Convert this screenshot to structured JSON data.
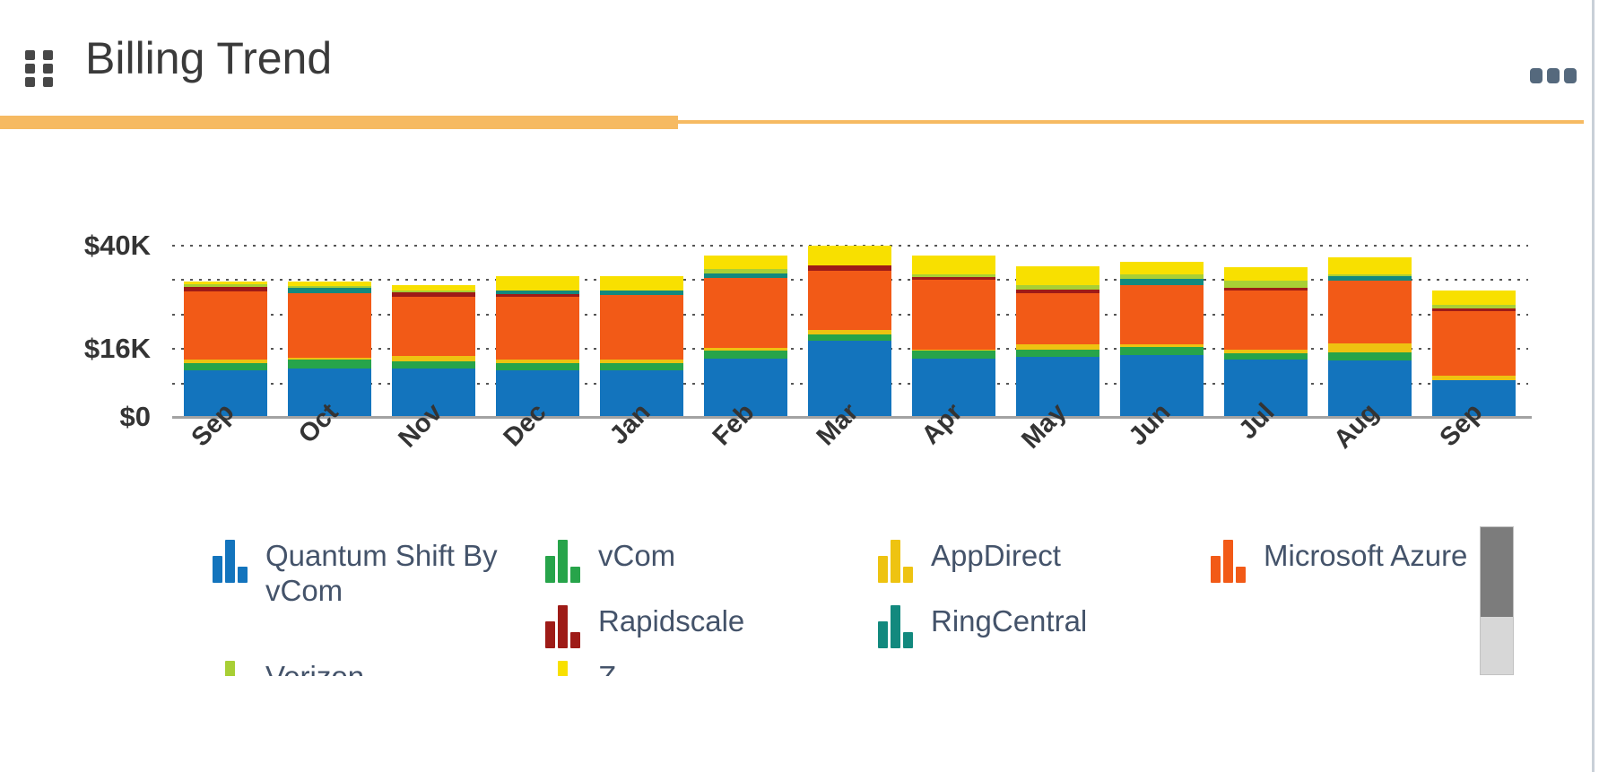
{
  "widget": {
    "title": "Billing Trend",
    "accent_color": "#f6ba62",
    "icons": {
      "drag_handle": "grip-dots",
      "menu": "ellipsis"
    }
  },
  "chart": {
    "y_axis_labels": [
      "$40K",
      "$16K",
      "$0"
    ]
  },
  "chart_data": {
    "type": "bar",
    "stacked": true,
    "title": "Billing Trend",
    "unit": "USD thousands",
    "categories": [
      "Sep",
      "Oct",
      "Nov",
      "Dec",
      "Jan",
      "Feb",
      "Mar",
      "Apr",
      "May",
      "Jun",
      "Jul",
      "Aug",
      "Sep"
    ],
    "ylim": [
      0,
      40
    ],
    "gridline_step": 8,
    "y_tick_labels_shown": [
      "$40K",
      "$16K",
      "$0"
    ],
    "grid": "dotted-horizontal",
    "legend_position": "bottom",
    "series": [
      {
        "name": "Quantum Shift By vCom",
        "color": "#1374bd",
        "values": [
          10.6,
          11.0,
          11.1,
          10.6,
          10.6,
          13.4,
          17.5,
          13.4,
          13.8,
          14.1,
          13.2,
          13.0,
          8.3
        ]
      },
      {
        "name": "vCom",
        "color": "#27a44a",
        "values": [
          1.7,
          2.1,
          1.7,
          1.7,
          1.7,
          1.9,
          1.5,
          1.7,
          1.7,
          1.9,
          1.3,
          1.7,
          0
        ]
      },
      {
        "name": "AppDirect",
        "color": "#eec311",
        "values": [
          0.9,
          0.4,
          1.1,
          0.9,
          0.9,
          0.6,
          0.9,
          0.4,
          1.1,
          0.6,
          0.9,
          2.1,
          1.0
        ]
      },
      {
        "name": "Microsoft Azure",
        "color": "#f25a17",
        "values": [
          15.8,
          15.1,
          13.8,
          14.5,
          14.9,
          16.2,
          13.9,
          16.2,
          11.9,
          13.8,
          13.8,
          14.7,
          15.0
        ]
      },
      {
        "name": "Rapidscale",
        "color": "#9e1b17",
        "values": [
          0.9,
          0,
          1.1,
          0.6,
          0,
          0,
          1.1,
          0.6,
          0.9,
          0,
          0.6,
          0,
          0.6
        ]
      },
      {
        "name": "RingCentral",
        "color": "#12897e",
        "values": [
          0,
          1.1,
          0,
          0.9,
          1.1,
          1.1,
          0,
          0,
          0,
          1.5,
          0,
          0.9,
          0
        ]
      },
      {
        "name": "Verizon",
        "color": "#a8cf35",
        "values": [
          0.7,
          0.6,
          0.4,
          0,
          0,
          0.9,
          0,
          0.6,
          1.1,
          1.1,
          1.7,
          0.6,
          1.0
        ]
      },
      {
        "name": "Z",
        "color": "#f8e000",
        "values": [
          0.6,
          0.9,
          1.3,
          3.4,
          3.2,
          3.2,
          4.7,
          4.3,
          4.3,
          2.8,
          3.0,
          3.8,
          3.3
        ]
      }
    ]
  },
  "legend": {
    "items": [
      {
        "label": "Quantum Shift By vCom",
        "color": "#1374bd",
        "col": 1,
        "row": 1
      },
      {
        "label": "vCom",
        "color": "#27a44a",
        "col": 2,
        "row": 1
      },
      {
        "label": "AppDirect",
        "color": "#eec311",
        "col": 3,
        "row": 1
      },
      {
        "label": "Microsoft Azure",
        "color": "#f25a17",
        "col": 4,
        "row": 1
      },
      {
        "label": "Rapidscale",
        "color": "#9e1b17",
        "col": 2,
        "row": 2
      },
      {
        "label": "RingCentral",
        "color": "#12897e",
        "col": 3,
        "row": 2
      },
      {
        "label": "Verizon",
        "color": "#a8cf35",
        "col": 1,
        "row": 3
      },
      {
        "label": "Z",
        "color": "#f8e000",
        "col": 2,
        "row": 3
      }
    ],
    "clipped": true,
    "scrollbar": true
  }
}
